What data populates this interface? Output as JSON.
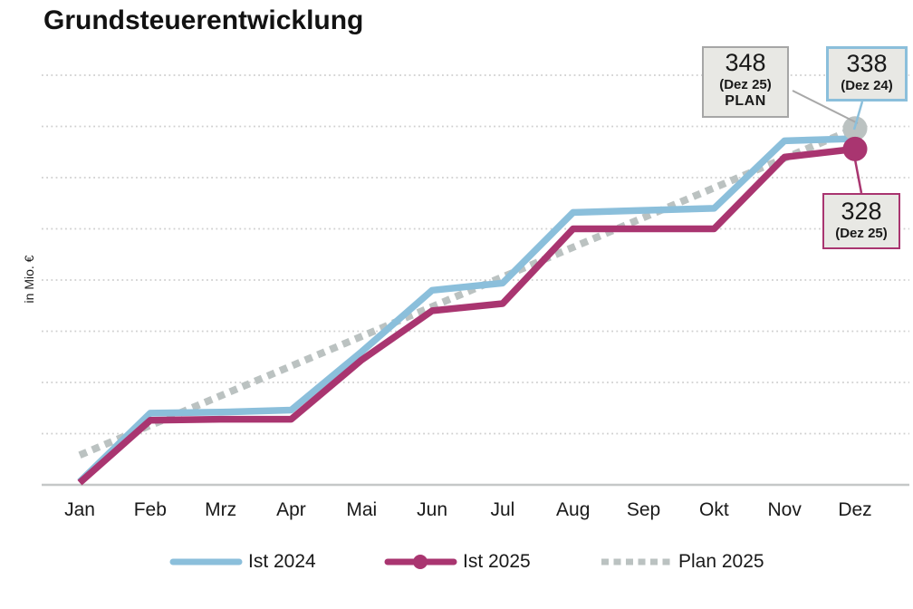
{
  "title": "Grundsteuerentwicklung",
  "y_axis_label": "in Mio. €",
  "chart_data": {
    "type": "line",
    "categories": [
      "Jan",
      "Feb",
      "Mrz",
      "Apr",
      "Mai",
      "Jun",
      "Jul",
      "Aug",
      "Sep",
      "Okt",
      "Nov",
      "Dez"
    ],
    "series": [
      {
        "name": "Ist 2024",
        "color": "#8BBFDB",
        "style": "solid",
        "end_marker": false,
        "values": [
          3,
          70,
          71,
          73,
          130,
          190,
          197,
          266,
          268,
          270,
          336,
          338
        ]
      },
      {
        "name": "Ist 2025",
        "color": "#A93570",
        "style": "solid",
        "end_marker": true,
        "values": [
          2,
          63,
          64,
          64,
          122,
          170,
          177,
          250,
          250,
          250,
          320,
          328
        ]
      },
      {
        "name": "Plan 2025",
        "color": "#BBC2C1",
        "style": "dotted",
        "end_marker": true,
        "values": [
          29,
          58,
          87,
          116,
          145,
          174,
          203,
          232,
          261,
          290,
          319,
          348
        ]
      }
    ],
    "ylim": [
      0,
      425
    ],
    "gridline_interval": 50,
    "grid": true,
    "legend_position": "bottom",
    "axis_color": "#c5c8c8",
    "gridline_color": "#cfcfcf"
  },
  "annotations": [
    {
      "value": "348",
      "sub": "(Dez 25)",
      "sub2": "PLAN",
      "border_color": "#A6A6A6",
      "fill": "#E8E8E4",
      "leader_color": "#A8A8A8"
    },
    {
      "value": "338",
      "sub": "(Dez 24)",
      "border_color": "#8BBFDB",
      "fill": "#E8E8E4",
      "leader_color": "#8BBFDB"
    },
    {
      "value": "328",
      "sub": "(Dez 25)",
      "border_color": "#A93570",
      "fill": "#E8E8E4",
      "leader_color": "#A93570"
    }
  ]
}
